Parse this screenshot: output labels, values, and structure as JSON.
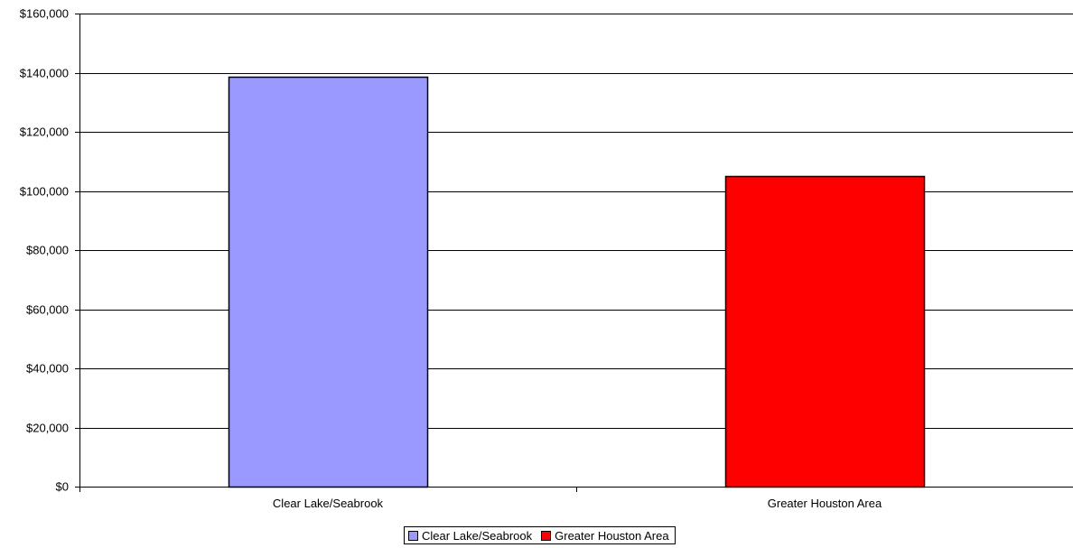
{
  "chart_data": {
    "type": "bar",
    "categories": [
      "Clear Lake/Seabrook",
      "Greater Houston Area"
    ],
    "values": [
      138500,
      105000
    ],
    "colors": [
      "#9999ff",
      "#ff0000"
    ],
    "yticks": [
      "$0",
      "$20,000",
      "$40,000",
      "$60,000",
      "$80,000",
      "$100,000",
      "$120,000",
      "$140,000",
      "$160,000"
    ],
    "ylim": [
      0,
      160000
    ],
    "ytick_step": 20000,
    "grid": true,
    "legend_position": "bottom-center",
    "legend": [
      {
        "label": "Clear Lake/Seabrook",
        "color": "#9999ff"
      },
      {
        "label": "Greater Houston Area",
        "color": "#ff0000"
      }
    ]
  }
}
